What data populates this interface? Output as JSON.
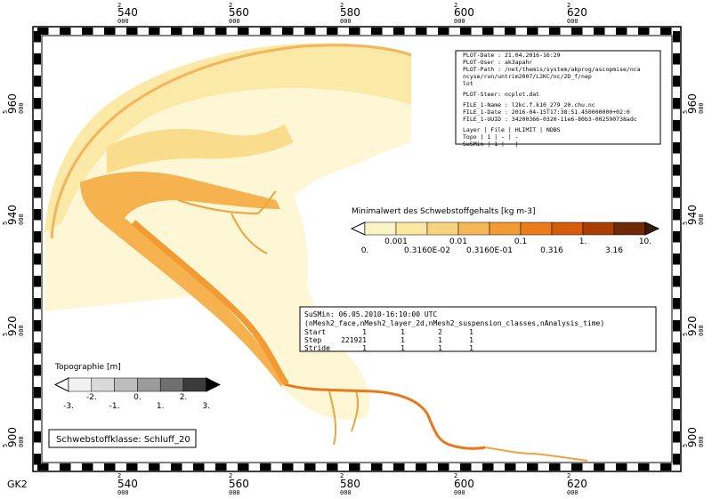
{
  "axes": {
    "x": [
      {
        "prefix": "2",
        "value": "540",
        "suffix": "000"
      },
      {
        "prefix": "2",
        "value": "560",
        "suffix": "000"
      },
      {
        "prefix": "2",
        "value": "580",
        "suffix": "000"
      },
      {
        "prefix": "2",
        "value": "600",
        "suffix": "000"
      },
      {
        "prefix": "2",
        "value": "620",
        "suffix": "000"
      }
    ],
    "y": [
      {
        "prefix": "5",
        "value": "960",
        "suffix": "000"
      },
      {
        "prefix": "5",
        "value": "940",
        "suffix": "000"
      },
      {
        "prefix": "5",
        "value": "920",
        "suffix": "000"
      },
      {
        "prefix": "5",
        "value": "900",
        "suffix": "000"
      }
    ]
  },
  "crs": "GK2",
  "plot_info": {
    "lines": [
      "PLOT-Date : 21.04.2016-16:29",
      "PLOT-User : ak3apahr",
      "PLOT-Path : /net/themis/system/akprog/ascopmise/nca",
      "ncyse/run/untrim2007/L2KC/nc/2D_f/nep",
      "lot",
      "PLOT-Steer: ncplot.dat",
      "FILE_1-Name : l2kc.f.k10_279_20.chu.nc",
      "FILE_1-Date : 2016-04-15T17:38:51.450000000+02:0",
      "FILE_1-UUID : 34200366-0320-11e6-80b3-002590738adc",
      "Layer | File | HLIMIT | NDBS",
      "Topo | 1 | - | -",
      "SuSMin | 1 | - | -"
    ]
  },
  "susp_legend": {
    "title": "Minimalwert des Schwebstoffgehalts [kg m-3]",
    "labels": [
      "0.",
      "0.001",
      "0.3160E-02",
      "0.01",
      "0.3160E-01",
      "0.1",
      "0.316",
      "1.",
      "3.16",
      "10."
    ]
  },
  "run_info": {
    "title": "SuSMin: 06.05.2010-16:10:00 UTC",
    "dims": "(nMesh2_face,nMesh2_layer_2d,nMesh2_suspension_classes,nAnalysis_time)",
    "rows": [
      [
        "Start",
        "1",
        "1",
        "2",
        "1"
      ],
      [
        "Step",
        "221921",
        "1",
        "1",
        "1"
      ],
      [
        "Stride",
        "1",
        "1",
        "1",
        "1"
      ]
    ]
  },
  "topo_legend": {
    "title": "Topographie [m]",
    "labels": [
      "-3.",
      "-2.",
      "-1.",
      "0.",
      "1.",
      "2.",
      "3."
    ]
  },
  "class_box": "Schwebstoffklasse: Schluff_20"
}
